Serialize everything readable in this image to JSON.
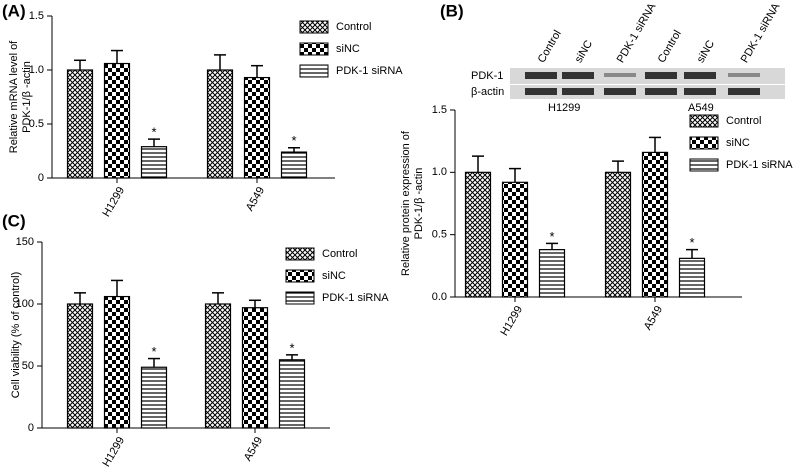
{
  "panel_labels": [
    "(A)",
    "(B)",
    "(C)"
  ],
  "blot": {
    "lanes": [
      "Control",
      "siNC",
      "PDK-1 siRNA",
      "Control",
      "siNC",
      "PDK-1 siRNA"
    ],
    "rows": [
      "PDK-1",
      "β-actin"
    ],
    "groups": [
      "H1299",
      "A549"
    ]
  },
  "chart_data": [
    {
      "type": "bar",
      "y_label": [
        "Relative mRNA level of",
        "PDK-1/β -actin"
      ],
      "categories": [
        "H1299",
        "A549"
      ],
      "ylim": [
        0,
        1.5
      ],
      "yticks": [
        0,
        0.5,
        {
          "value": 1,
          "label": "1.0"
        },
        1.5
      ],
      "series": [
        {
          "name": "Control",
          "color": "#000000",
          "pattern": "crosshatch",
          "values": [
            1.0,
            1.0
          ],
          "errors": [
            0.09,
            0.14
          ]
        },
        {
          "name": "siNC",
          "color": "#000000",
          "pattern": "checker",
          "values": [
            1.06,
            0.93
          ],
          "errors": [
            0.12,
            0.11
          ]
        },
        {
          "name": "PDK-1 siRNA",
          "color": "#000000",
          "pattern": "hlines",
          "values": [
            0.29,
            0.24
          ],
          "errors": [
            0.07,
            0.04
          ],
          "significance": [
            "*",
            "*"
          ]
        }
      ]
    },
    {
      "type": "bar",
      "y_label": [
        "Relative protein expression of",
        "PDK-1/β -actin"
      ],
      "categories": [
        "H1299",
        "A549"
      ],
      "ylim": [
        0,
        1.5
      ],
      "yticks": [
        {
          "value": 0,
          "label": "0.0"
        },
        0.5,
        {
          "value": 1,
          "label": "1.0"
        },
        1.5
      ],
      "series": [
        {
          "name": "Control",
          "color": "#000000",
          "pattern": "crosshatch",
          "values": [
            1.0,
            1.0
          ],
          "errors": [
            0.13,
            0.09
          ]
        },
        {
          "name": "siNC",
          "color": "#000000",
          "pattern": "checker",
          "values": [
            0.92,
            1.16
          ],
          "errors": [
            0.11,
            0.12
          ]
        },
        {
          "name": "PDK-1 siRNA",
          "color": "#000000",
          "pattern": "hlines",
          "values": [
            0.38,
            0.31
          ],
          "errors": [
            0.05,
            0.07
          ],
          "significance": [
            "*",
            "*"
          ]
        }
      ]
    },
    {
      "type": "bar",
      "y_label": [
        "Cell viability (% of control)"
      ],
      "categories": [
        "H1299",
        "A549"
      ],
      "ylim": [
        0,
        150
      ],
      "yticks": [
        0,
        50,
        100,
        150
      ],
      "series": [
        {
          "name": "Control",
          "color": "#000000",
          "pattern": "crosshatch",
          "values": [
            100,
            100
          ],
          "errors": [
            9,
            9
          ]
        },
        {
          "name": "siNC",
          "color": "#000000",
          "pattern": "checker",
          "values": [
            106,
            97
          ],
          "errors": [
            13,
            6
          ]
        },
        {
          "name": "PDK-1 siRNA",
          "color": "#000000",
          "pattern": "hlines",
          "values": [
            49,
            55
          ],
          "errors": [
            7,
            4
          ],
          "significance": [
            "*",
            "*"
          ]
        }
      ]
    }
  ]
}
